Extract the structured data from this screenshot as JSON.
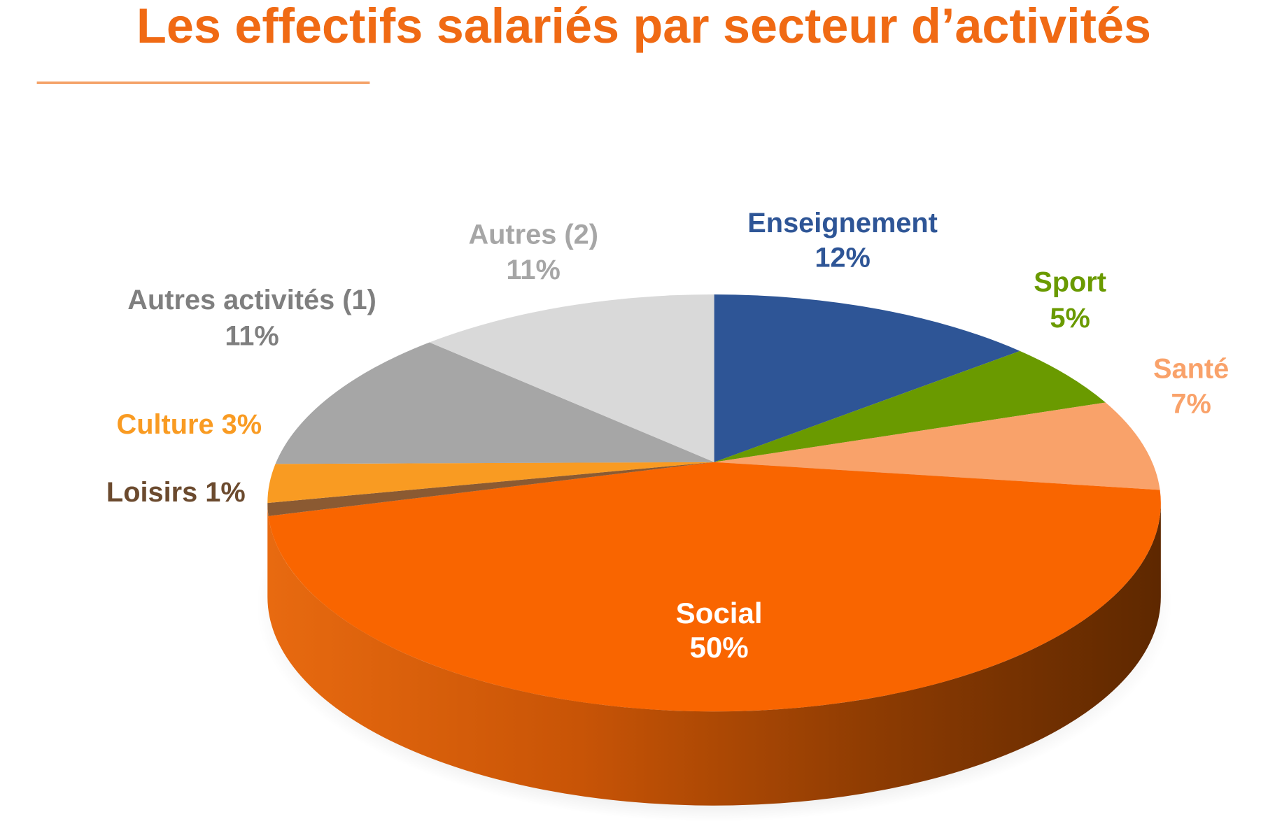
{
  "chart_data": {
    "type": "pie",
    "title": "Les effectifs salariés par secteur d’activités",
    "categories": [
      "Enseignement",
      "Sport",
      "Santé",
      "Social",
      "Loisirs",
      "Culture",
      "Autres activités (1)",
      "Autres (2)"
    ],
    "values": [
      12,
      5,
      7,
      50,
      1,
      3,
      11,
      11
    ],
    "value_labels": [
      "12%",
      "5%",
      "7%",
      "50%",
      "1%",
      "3%",
      "11%",
      "11%"
    ],
    "colors": [
      "#2E5596",
      "#6A9A00",
      "#F9A26A",
      "#F96500",
      "#8B5A32",
      "#F99B22",
      "#A6A6A6",
      "#D9D9D9"
    ],
    "label_colors": [
      "#2E5596",
      "#6A9A00",
      "#F9A26A",
      "#FFFFFF",
      "#6B4A2E",
      "#F99B22",
      "#7F7F7F",
      "#A6A6A6"
    ],
    "style": "3d",
    "legend": "none"
  }
}
